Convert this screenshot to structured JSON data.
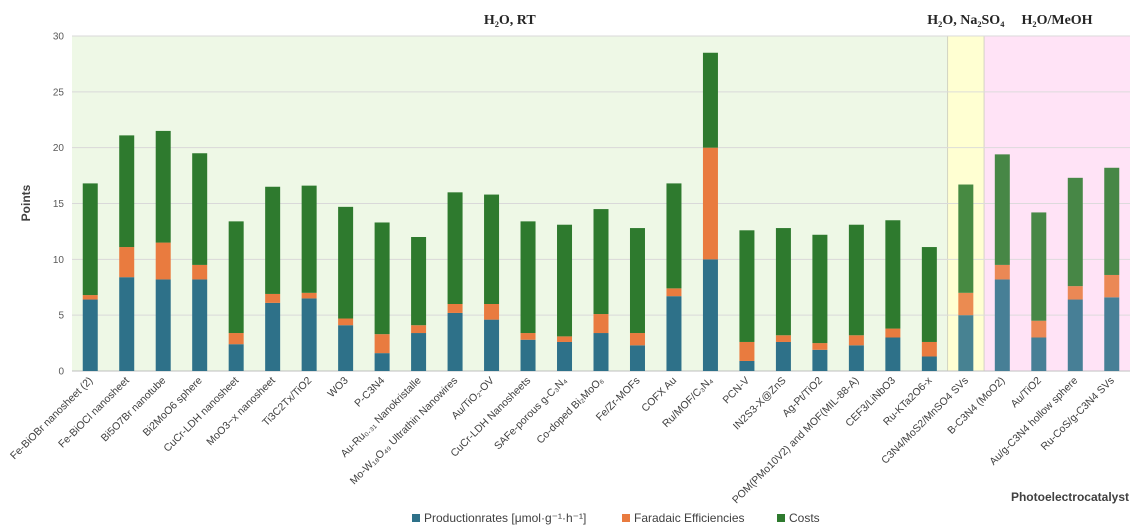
{
  "chart_data": {
    "type": "bar",
    "stacked": true,
    "ylabel": "Points",
    "xlabel": "Photoelectrocatalyst",
    "ylim": [
      0,
      30
    ],
    "yticks": [
      0,
      5,
      10,
      15,
      20,
      25,
      30
    ],
    "grid": true,
    "legend_position": "bottom",
    "categories": [
      "Fe-BiOBr nanosheet (2)",
      "Fe-BiOCl nanosheet",
      "Bi5O7Br nanotube",
      "Bi2MoO6 sphere",
      "CuCr-LDH nanosheet",
      "MoO3−x nanosheet",
      "Ti3C2Tx/TiO2",
      "WO3",
      "P-C3N4",
      "Au-Ru₀.₃₁ Nanokristalle",
      "Mo-W₁₈O₄₉ Ultrathin Nanowires",
      "Au/TiO₂-OV",
      "CuCr-LDH Nanosheets",
      "SAFe-porous g-C₃N₄",
      "Co-doped Bi₂MoO₆",
      "Fe/Zr-MOFs",
      "COFX Au",
      "Ru/MOF/C₃N₄",
      "PCN-V",
      "IN2S3-X@ZnS",
      "Ag-Pt/TiO2",
      "POM(PMo10V2) and MOF(MIL-88-A)",
      "CEF3/LiNbO3",
      "Ru-KTa2O6-x",
      "C3N4/MoS2/MnSO4 SVs",
      "B-C3N4 (MoO2)",
      "Au/TiO2",
      "Au/g-C3N4 hollow sphere",
      "Ru-CoS/g-C3N4 SVs"
    ],
    "series": [
      {
        "name": "Productionrates [μmol·g⁻¹·h⁻¹]",
        "color": "#2E7189",
        "values": [
          6.4,
          8.4,
          8.2,
          8.2,
          2.4,
          6.1,
          6.5,
          4.1,
          1.6,
          3.4,
          5.2,
          4.6,
          2.8,
          2.6,
          3.4,
          2.3,
          6.7,
          10.0,
          0.9,
          2.6,
          1.9,
          2.3,
          3.0,
          1.3,
          5.0,
          8.2,
          3.0,
          6.4,
          6.6
        ]
      },
      {
        "name": "Faradaic Efficiencies",
        "color": "#E97B3F",
        "values": [
          0.4,
          2.7,
          3.3,
          1.3,
          1.0,
          0.8,
          0.5,
          0.6,
          1.7,
          0.7,
          0.8,
          1.4,
          0.6,
          0.5,
          1.7,
          1.1,
          0.7,
          10.0,
          1.7,
          0.6,
          0.6,
          0.9,
          0.8,
          1.3,
          2.0,
          1.3,
          1.5,
          1.2,
          2.0
        ]
      },
      {
        "name": "Costs",
        "color": "#2E7A2E",
        "values": [
          10.0,
          10.0,
          10.0,
          10.0,
          10.0,
          9.6,
          9.6,
          10.0,
          10.0,
          7.9,
          10.0,
          9.8,
          10.0,
          10.0,
          9.4,
          9.4,
          9.4,
          8.5,
          10.0,
          9.6,
          9.7,
          9.9,
          9.7,
          8.5,
          9.7,
          9.9,
          9.7,
          9.7,
          9.6
        ]
      }
    ],
    "regions": [
      {
        "label": "H₂O, RT",
        "start": 0,
        "end": 23,
        "color": "#EEF8E6"
      },
      {
        "label": "H₂O, Na₂SO₄",
        "start": 24,
        "end": 24,
        "color": "#FFFFD2"
      },
      {
        "label": "H₂O/MeOH",
        "start": 25,
        "end": 28,
        "color": "#FFE3F6"
      }
    ]
  }
}
